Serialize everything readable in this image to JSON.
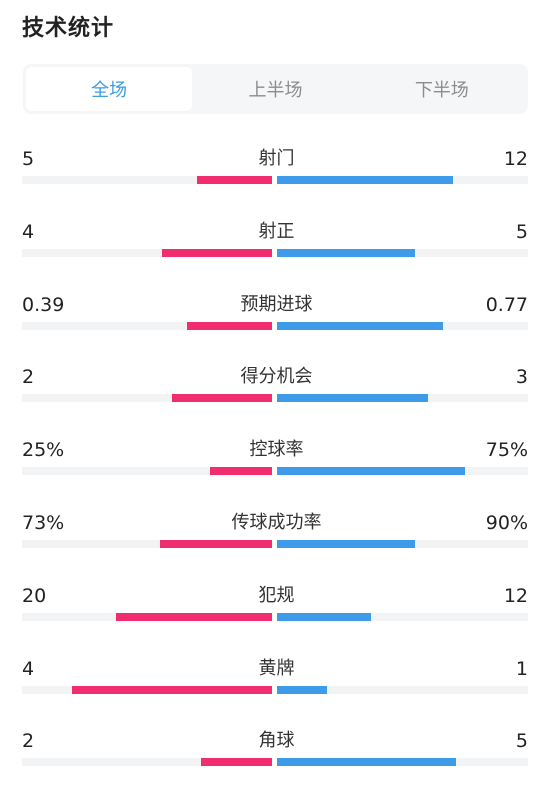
{
  "header": {
    "title": "技术统计"
  },
  "tabs": [
    {
      "label": "全场",
      "active": true
    },
    {
      "label": "上半场",
      "active": false
    },
    {
      "label": "下半场",
      "active": false
    }
  ],
  "colors": {
    "home": "#f02d6e",
    "away": "#3d9be9",
    "active_tab": "#3d9be0"
  },
  "stats": [
    {
      "name": "射门",
      "home": "5",
      "away": "12",
      "home_frac": 0.3,
      "away_frac": 0.7
    },
    {
      "name": "射正",
      "home": "4",
      "away": "5",
      "home_frac": 0.44,
      "away_frac": 0.55
    },
    {
      "name": "预期进球",
      "home": "0.39",
      "away": "0.77",
      "home_frac": 0.34,
      "away_frac": 0.66
    },
    {
      "name": "得分机会",
      "home": "2",
      "away": "3",
      "home_frac": 0.4,
      "away_frac": 0.6
    },
    {
      "name": "控球率",
      "home": "25%",
      "away": "75%",
      "home_frac": 0.25,
      "away_frac": 0.75
    },
    {
      "name": "传球成功率",
      "home": "73%",
      "away": "90%",
      "home_frac": 0.45,
      "away_frac": 0.55
    },
    {
      "name": "犯规",
      "home": "20",
      "away": "12",
      "home_frac": 0.625,
      "away_frac": 0.375
    },
    {
      "name": "黄牌",
      "home": "4",
      "away": "1",
      "home_frac": 0.8,
      "away_frac": 0.2
    },
    {
      "name": "角球",
      "home": "2",
      "away": "5",
      "home_frac": 0.286,
      "away_frac": 0.714
    }
  ]
}
